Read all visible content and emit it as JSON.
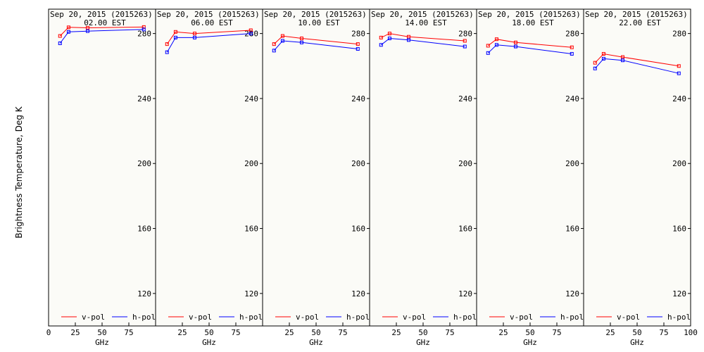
{
  "ylabel": "Brightness Temperature, Deg K",
  "xlabel": "GHz",
  "colors": {
    "v_pol": "#ff0000",
    "h_pol": "#0000ff"
  },
  "chart_data": [
    {
      "type": "line",
      "title": "Sep 20, 2015 (2015263)",
      "subtitle": "02.00 EST",
      "xlabel": "GHz",
      "xlim": [
        0,
        100
      ],
      "xticks": [
        0,
        25,
        50,
        75,
        100
      ],
      "ylim": [
        100,
        295
      ],
      "yticks": [
        120,
        160,
        200,
        240,
        280
      ],
      "legend": [
        "v-pol",
        "h-pol"
      ],
      "series": [
        {
          "name": "v-pol",
          "x": [
            10.7,
            18.7,
            36.5,
            89.0
          ],
          "y": [
            278.5,
            283.8,
            283.5,
            284.0
          ]
        },
        {
          "name": "h-pol",
          "x": [
            10.7,
            18.7,
            36.5,
            89.0
          ],
          "y": [
            274.0,
            281.0,
            281.5,
            282.5
          ]
        }
      ]
    },
    {
      "type": "line",
      "title": "Sep 20, 2015 (2015263)",
      "subtitle": "06.00 EST",
      "xlabel": "GHz",
      "xlim": [
        0,
        100
      ],
      "xticks": [
        0,
        25,
        50,
        75,
        100
      ],
      "ylim": [
        100,
        295
      ],
      "yticks": [
        120,
        160,
        200,
        240,
        280
      ],
      "legend": [
        "v-pol",
        "h-pol"
      ],
      "series": [
        {
          "name": "v-pol",
          "x": [
            10.7,
            18.7,
            36.5,
            89.0
          ],
          "y": [
            273.5,
            281.0,
            280.0,
            282.0
          ]
        },
        {
          "name": "h-pol",
          "x": [
            10.7,
            18.7,
            36.5,
            89.0
          ],
          "y": [
            268.5,
            277.5,
            277.5,
            280.0
          ]
        }
      ]
    },
    {
      "type": "line",
      "title": "Sep 20, 2015 (2015263)",
      "subtitle": "10.00 EST",
      "xlabel": "GHz",
      "xlim": [
        0,
        100
      ],
      "xticks": [
        0,
        25,
        50,
        75,
        100
      ],
      "ylim": [
        100,
        295
      ],
      "yticks": [
        120,
        160,
        200,
        240,
        280
      ],
      "legend": [
        "v-pol",
        "h-pol"
      ],
      "series": [
        {
          "name": "v-pol",
          "x": [
            10.7,
            18.7,
            36.5,
            89.0
          ],
          "y": [
            273.5,
            278.5,
            277.0,
            273.5
          ]
        },
        {
          "name": "h-pol",
          "x": [
            10.7,
            18.7,
            36.5,
            89.0
          ],
          "y": [
            269.5,
            275.5,
            274.5,
            270.5
          ]
        }
      ]
    },
    {
      "type": "line",
      "title": "Sep 20, 2015 (2015263)",
      "subtitle": "14.00 EST",
      "xlabel": "GHz",
      "xlim": [
        0,
        100
      ],
      "xticks": [
        0,
        25,
        50,
        75,
        100
      ],
      "ylim": [
        100,
        295
      ],
      "yticks": [
        120,
        160,
        200,
        240,
        280
      ],
      "legend": [
        "v-pol",
        "h-pol"
      ],
      "series": [
        {
          "name": "v-pol",
          "x": [
            10.7,
            18.7,
            36.5,
            89.0
          ],
          "y": [
            277.5,
            280.0,
            278.0,
            275.5
          ]
        },
        {
          "name": "h-pol",
          "x": [
            10.7,
            18.7,
            36.5,
            89.0
          ],
          "y": [
            273.0,
            277.0,
            276.0,
            272.0
          ]
        }
      ]
    },
    {
      "type": "line",
      "title": "Sep 20, 2015 (2015263)",
      "subtitle": "18.00 EST",
      "xlabel": "GHz",
      "xlim": [
        0,
        100
      ],
      "xticks": [
        0,
        25,
        50,
        75,
        100
      ],
      "ylim": [
        100,
        295
      ],
      "yticks": [
        120,
        160,
        200,
        240,
        280
      ],
      "legend": [
        "v-pol",
        "h-pol"
      ],
      "series": [
        {
          "name": "v-pol",
          "x": [
            10.7,
            18.7,
            36.5,
            89.0
          ],
          "y": [
            272.5,
            276.5,
            274.5,
            271.5
          ]
        },
        {
          "name": "h-pol",
          "x": [
            10.7,
            18.7,
            36.5,
            89.0
          ],
          "y": [
            268.0,
            273.0,
            272.0,
            267.5
          ]
        }
      ]
    },
    {
      "type": "line",
      "title": "Sep 20, 2015 (2015263)",
      "subtitle": "22.00 EST",
      "xlabel": "GHz",
      "xlim": [
        0,
        100
      ],
      "xticks": [
        0,
        25,
        50,
        75,
        100
      ],
      "ylim": [
        100,
        295
      ],
      "yticks": [
        120,
        160,
        200,
        240,
        280
      ],
      "legend": [
        "v-pol",
        "h-pol"
      ],
      "series": [
        {
          "name": "v-pol",
          "x": [
            10.7,
            18.7,
            36.5,
            89.0
          ],
          "y": [
            262.0,
            267.5,
            265.5,
            260.0
          ]
        },
        {
          "name": "h-pol",
          "x": [
            10.7,
            18.7,
            36.5,
            89.0
          ],
          "y": [
            258.5,
            264.5,
            263.5,
            255.5
          ]
        }
      ]
    }
  ]
}
